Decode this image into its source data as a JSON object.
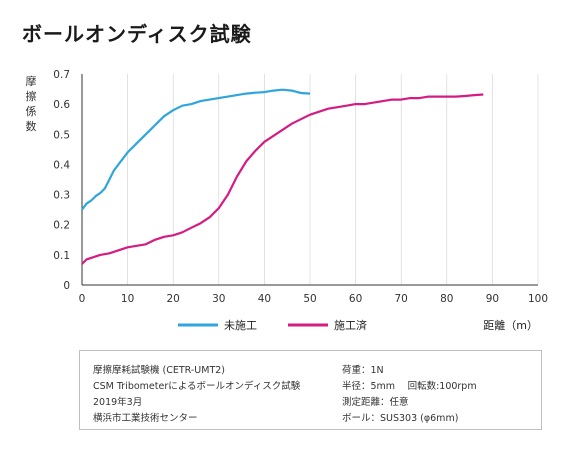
{
  "title": "ボールオンディスク試験",
  "colors": {
    "untreated": "#2fa5dc",
    "treated": "#d41c82",
    "axis": "#333333",
    "grid": "#d0d0d0"
  },
  "info": {
    "left": [
      "摩擦摩耗試験機 (CETR-UMT2)",
      "CSM Tribometerによるボールオンディスク試験",
      "2019年3月",
      "横浜市工業技術センター"
    ],
    "right": [
      "荷重：1N",
      "半径：5mm　 回転数:100rpm",
      "測定距離：任意",
      "ボール：SUS303 (φ6mm)"
    ]
  },
  "chart_data": {
    "type": "line",
    "xlabel": "距離（m）",
    "ylabel": "摩\n擦\n係\n数",
    "xlim": [
      0,
      100
    ],
    "ylim": [
      0,
      0.7
    ],
    "xticks": [
      "0",
      "10",
      "20",
      "30",
      "40",
      "50",
      "60",
      "70",
      "80",
      "90",
      "100"
    ],
    "yticks": [
      "0",
      "0.1",
      "0.2",
      "0.3",
      "0.4",
      "0.5",
      "0.6",
      "0.7"
    ],
    "series": [
      {
        "name": "未施工",
        "color": "#2fa5dc",
        "x": [
          0,
          1,
          2,
          3,
          4,
          5,
          6,
          7,
          8,
          10,
          12,
          14,
          16,
          18,
          20,
          22,
          24,
          26,
          28,
          30,
          32,
          34,
          36,
          38,
          40,
          42,
          44,
          46,
          48,
          50
        ],
        "y": [
          0.25,
          0.27,
          0.28,
          0.295,
          0.305,
          0.32,
          0.35,
          0.38,
          0.4,
          0.44,
          0.47,
          0.5,
          0.53,
          0.56,
          0.58,
          0.595,
          0.6,
          0.61,
          0.615,
          0.62,
          0.625,
          0.63,
          0.635,
          0.638,
          0.64,
          0.645,
          0.648,
          0.645,
          0.637,
          0.635
        ]
      },
      {
        "name": "施工済",
        "color": "#d41c82",
        "x": [
          0,
          1,
          2,
          4,
          6,
          8,
          10,
          12,
          14,
          16,
          18,
          20,
          22,
          24,
          26,
          28,
          30,
          32,
          34,
          36,
          38,
          40,
          42,
          44,
          46,
          48,
          50,
          52,
          54,
          56,
          58,
          60,
          62,
          64,
          66,
          68,
          70,
          72,
          74,
          76,
          78,
          80,
          82,
          84,
          86,
          88
        ],
        "y": [
          0.07,
          0.085,
          0.09,
          0.1,
          0.105,
          0.115,
          0.125,
          0.13,
          0.135,
          0.15,
          0.16,
          0.165,
          0.175,
          0.19,
          0.205,
          0.225,
          0.255,
          0.3,
          0.36,
          0.41,
          0.445,
          0.475,
          0.495,
          0.515,
          0.535,
          0.55,
          0.565,
          0.575,
          0.585,
          0.59,
          0.595,
          0.6,
          0.6,
          0.605,
          0.61,
          0.615,
          0.615,
          0.62,
          0.62,
          0.625,
          0.625,
          0.625,
          0.625,
          0.627,
          0.63,
          0.632
        ]
      }
    ]
  }
}
